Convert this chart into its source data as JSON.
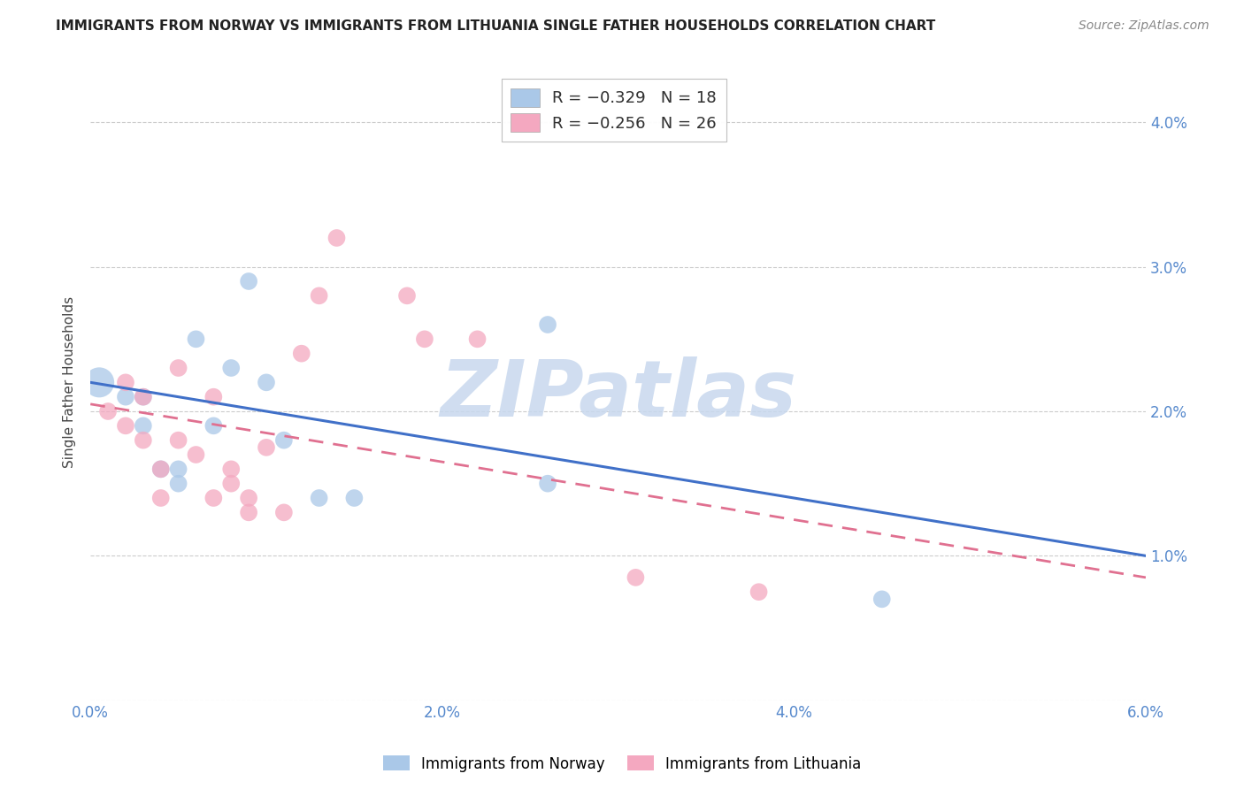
{
  "title": "IMMIGRANTS FROM NORWAY VS IMMIGRANTS FROM LITHUANIA SINGLE FATHER HOUSEHOLDS CORRELATION CHART",
  "source": "Source: ZipAtlas.com",
  "ylabel": "Single Father Households",
  "xlim": [
    0.0,
    0.06
  ],
  "ylim": [
    0.0,
    0.044
  ],
  "x_ticks": [
    0.0,
    0.01,
    0.02,
    0.03,
    0.04,
    0.05,
    0.06
  ],
  "x_tick_labels": [
    "0.0%",
    "",
    "2.0%",
    "",
    "4.0%",
    "",
    "6.0%"
  ],
  "y_ticks": [
    0.0,
    0.01,
    0.02,
    0.03,
    0.04
  ],
  "y_tick_labels_right": [
    "",
    "1.0%",
    "2.0%",
    "3.0%",
    "4.0%"
  ],
  "norway_R": -0.329,
  "norway_N": 18,
  "lithuania_R": -0.256,
  "lithuania_N": 26,
  "norway_color": "#aac8e8",
  "lithuania_color": "#f4a8c0",
  "norway_line_color": "#4070c8",
  "lithuania_line_color": "#e07090",
  "norway_x": [
    0.0005,
    0.002,
    0.003,
    0.003,
    0.004,
    0.005,
    0.005,
    0.006,
    0.007,
    0.008,
    0.009,
    0.01,
    0.011,
    0.013,
    0.015,
    0.026,
    0.026,
    0.045
  ],
  "norway_y": [
    0.022,
    0.021,
    0.021,
    0.019,
    0.016,
    0.015,
    0.016,
    0.025,
    0.019,
    0.023,
    0.029,
    0.022,
    0.018,
    0.014,
    0.014,
    0.026,
    0.015,
    0.007
  ],
  "norway_sizes": [
    600,
    200,
    200,
    200,
    200,
    200,
    200,
    200,
    200,
    200,
    200,
    200,
    200,
    200,
    200,
    200,
    200,
    200
  ],
  "lithuania_x": [
    0.001,
    0.002,
    0.002,
    0.003,
    0.003,
    0.004,
    0.004,
    0.005,
    0.005,
    0.006,
    0.007,
    0.007,
    0.008,
    0.008,
    0.009,
    0.009,
    0.01,
    0.011,
    0.012,
    0.013,
    0.014,
    0.018,
    0.019,
    0.022,
    0.031,
    0.038
  ],
  "lithuania_y": [
    0.02,
    0.022,
    0.019,
    0.021,
    0.018,
    0.016,
    0.014,
    0.023,
    0.018,
    0.017,
    0.021,
    0.014,
    0.016,
    0.015,
    0.014,
    0.013,
    0.0175,
    0.013,
    0.024,
    0.028,
    0.032,
    0.028,
    0.025,
    0.025,
    0.0085,
    0.0075
  ],
  "lithuania_sizes": [
    200,
    200,
    200,
    200,
    200,
    200,
    200,
    200,
    200,
    200,
    200,
    200,
    200,
    200,
    200,
    200,
    200,
    200,
    200,
    200,
    200,
    200,
    200,
    200,
    200,
    200
  ],
  "norway_line_x": [
    0.0,
    0.06
  ],
  "norway_line_y": [
    0.022,
    0.01
  ],
  "lithuania_line_x": [
    0.0,
    0.06
  ],
  "lithuania_line_y": [
    0.0205,
    0.0085
  ],
  "watermark_text": "ZIPatlas",
  "watermark_color": "#c8d8ee",
  "background_color": "#ffffff",
  "grid_color": "#cccccc",
  "tick_color": "#5588cc",
  "title_color": "#222222",
  "source_color": "#888888",
  "legend_top_labels": [
    "R = −0.329   N = 18",
    "R = −0.256   N = 26"
  ],
  "legend_bottom_labels": [
    "Immigrants from Norway",
    "Immigrants from Lithuania"
  ]
}
